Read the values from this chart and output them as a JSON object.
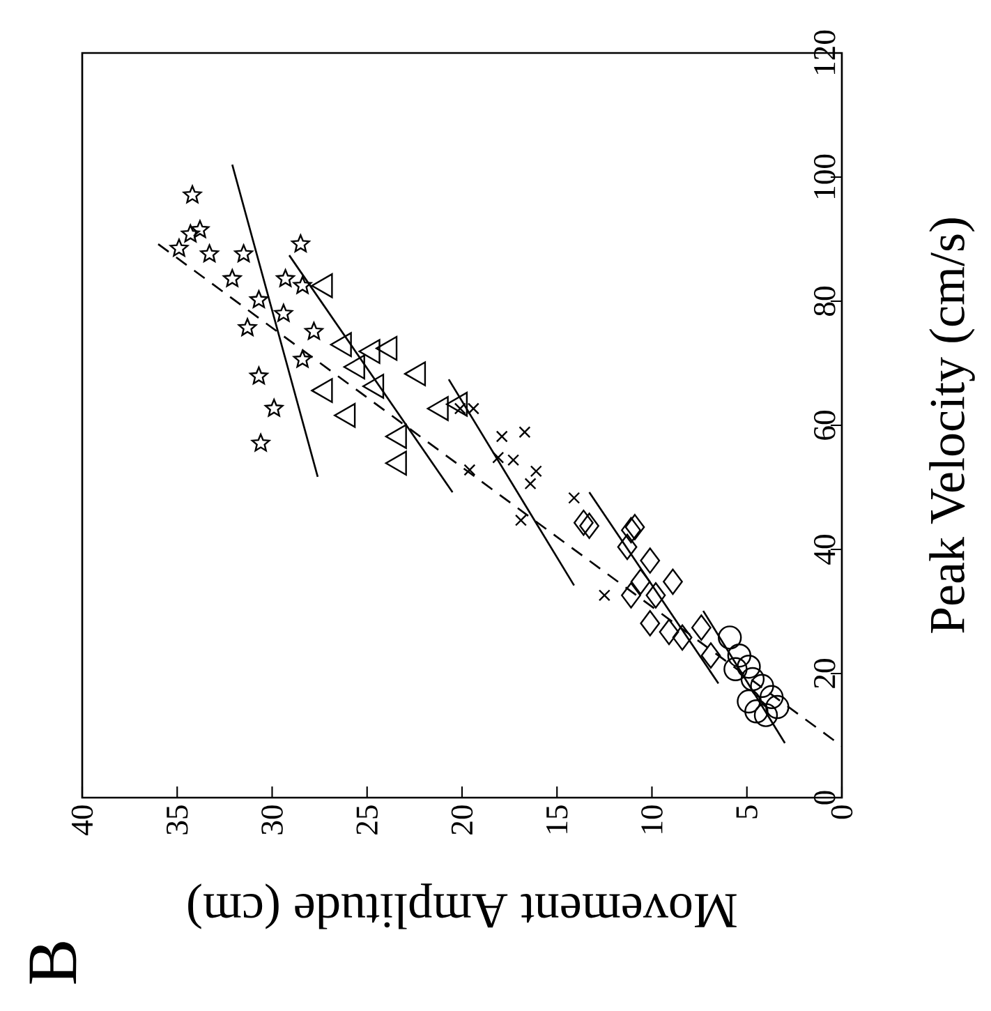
{
  "chart_data": {
    "type": "scatter",
    "xlabel": "Movement Amplitude (cm)",
    "ylabel": "Peak Velocity (cm/s)",
    "xlim": [
      40,
      0
    ],
    "ylim": [
      0,
      120
    ],
    "xticks": [
      0,
      5,
      10,
      15,
      20,
      25,
      30,
      35,
      40
    ],
    "yticks": [
      0,
      20,
      40,
      60,
      80,
      100,
      120
    ],
    "annotations": [
      "B"
    ],
    "series": [
      {
        "marker": "circle",
        "color": "#000000",
        "x": [
          5.9,
          5.4,
          4.9,
          4.2,
          3.7,
          4.5,
          3.4,
          4.0,
          4.9,
          5.6,
          4.7
        ],
        "values": [
          25.8,
          22.9,
          21.1,
          18.0,
          16.2,
          13.9,
          14.6,
          13.3,
          15.5,
          20.7,
          19.1
        ]
      },
      {
        "marker": "diamond",
        "color": "#000000",
        "x": [
          10.9,
          11.3,
          10.1,
          8.9,
          11.1,
          9.8,
          10.1,
          9.1,
          8.4,
          7.4,
          6.9,
          13.3,
          13.6,
          11.1,
          10.6
        ],
        "values": [
          43.6,
          40.4,
          38.2,
          34.8,
          32.6,
          32.6,
          28.1,
          26.7,
          25.8,
          27.4,
          22.9,
          43.8,
          44.3,
          43.1,
          34.8
        ]
      },
      {
        "marker": "cross",
        "color": "#000000",
        "x": [
          19.4,
          17.9,
          16.7,
          17.3,
          16.1,
          16.9,
          14.1,
          19.6,
          18.1,
          16.4,
          20.1,
          12.5
        ],
        "values": [
          62.7,
          58.2,
          58.9,
          54.4,
          52.6,
          44.7,
          48.3,
          52.8,
          54.8,
          50.6,
          62.7,
          32.6
        ]
      },
      {
        "marker": "triangle",
        "color": "#000000",
        "x": [
          27.2,
          26.2,
          24.7,
          23.8,
          22.3,
          27.2,
          26.0,
          23.3,
          23.3,
          21.1,
          20.1,
          25.5,
          24.5
        ],
        "values": [
          82.5,
          73.0,
          71.9,
          72.4,
          68.3,
          65.6,
          61.6,
          58.2,
          53.9,
          62.7,
          63.4,
          69.4,
          66.3
        ]
      },
      {
        "marker": "star",
        "color": "#000000",
        "x": [
          34.3,
          34.2,
          33.8,
          33.3,
          31.5,
          28.5,
          32.1,
          29.3,
          30.7,
          29.4,
          31.3,
          27.8,
          28.4,
          30.7,
          29.9,
          30.6,
          28.4,
          34.9
        ],
        "values": [
          90.8,
          97.1,
          91.5,
          87.6,
          87.6,
          89.2,
          83.6,
          83.6,
          80.2,
          78.0,
          75.7,
          75.1,
          70.6,
          67.9,
          62.7,
          57.1,
          82.5,
          88.5
        ]
      },
      {
        "type": "line",
        "marker": "none",
        "line_style": "solid",
        "color": "#000000",
        "x": [
          7.3,
          3.0
        ],
        "values": [
          30.1,
          8.8
        ]
      },
      {
        "type": "line",
        "marker": "none",
        "line_style": "solid",
        "color": "#000000",
        "x": [
          13.3,
          6.5
        ],
        "values": [
          49.2,
          18.4
        ]
      },
      {
        "type": "line",
        "marker": "none",
        "line_style": "solid",
        "color": "#000000",
        "x": [
          20.7,
          14.1
        ],
        "values": [
          67.4,
          34.2
        ]
      },
      {
        "type": "line",
        "marker": "none",
        "line_style": "solid",
        "color": "#000000",
        "x": [
          29.1,
          20.5
        ],
        "values": [
          87.4,
          49.2
        ]
      },
      {
        "type": "line",
        "marker": "none",
        "line_style": "solid",
        "color": "#000000",
        "x": [
          32.1,
          27.6
        ],
        "values": [
          102,
          51.7
        ]
      },
      {
        "type": "line",
        "marker": "none",
        "line_style": "dashed",
        "color": "#000000",
        "x": [
          36.0,
          0
        ],
        "values": [
          89.2,
          8.3
        ]
      }
    ]
  }
}
